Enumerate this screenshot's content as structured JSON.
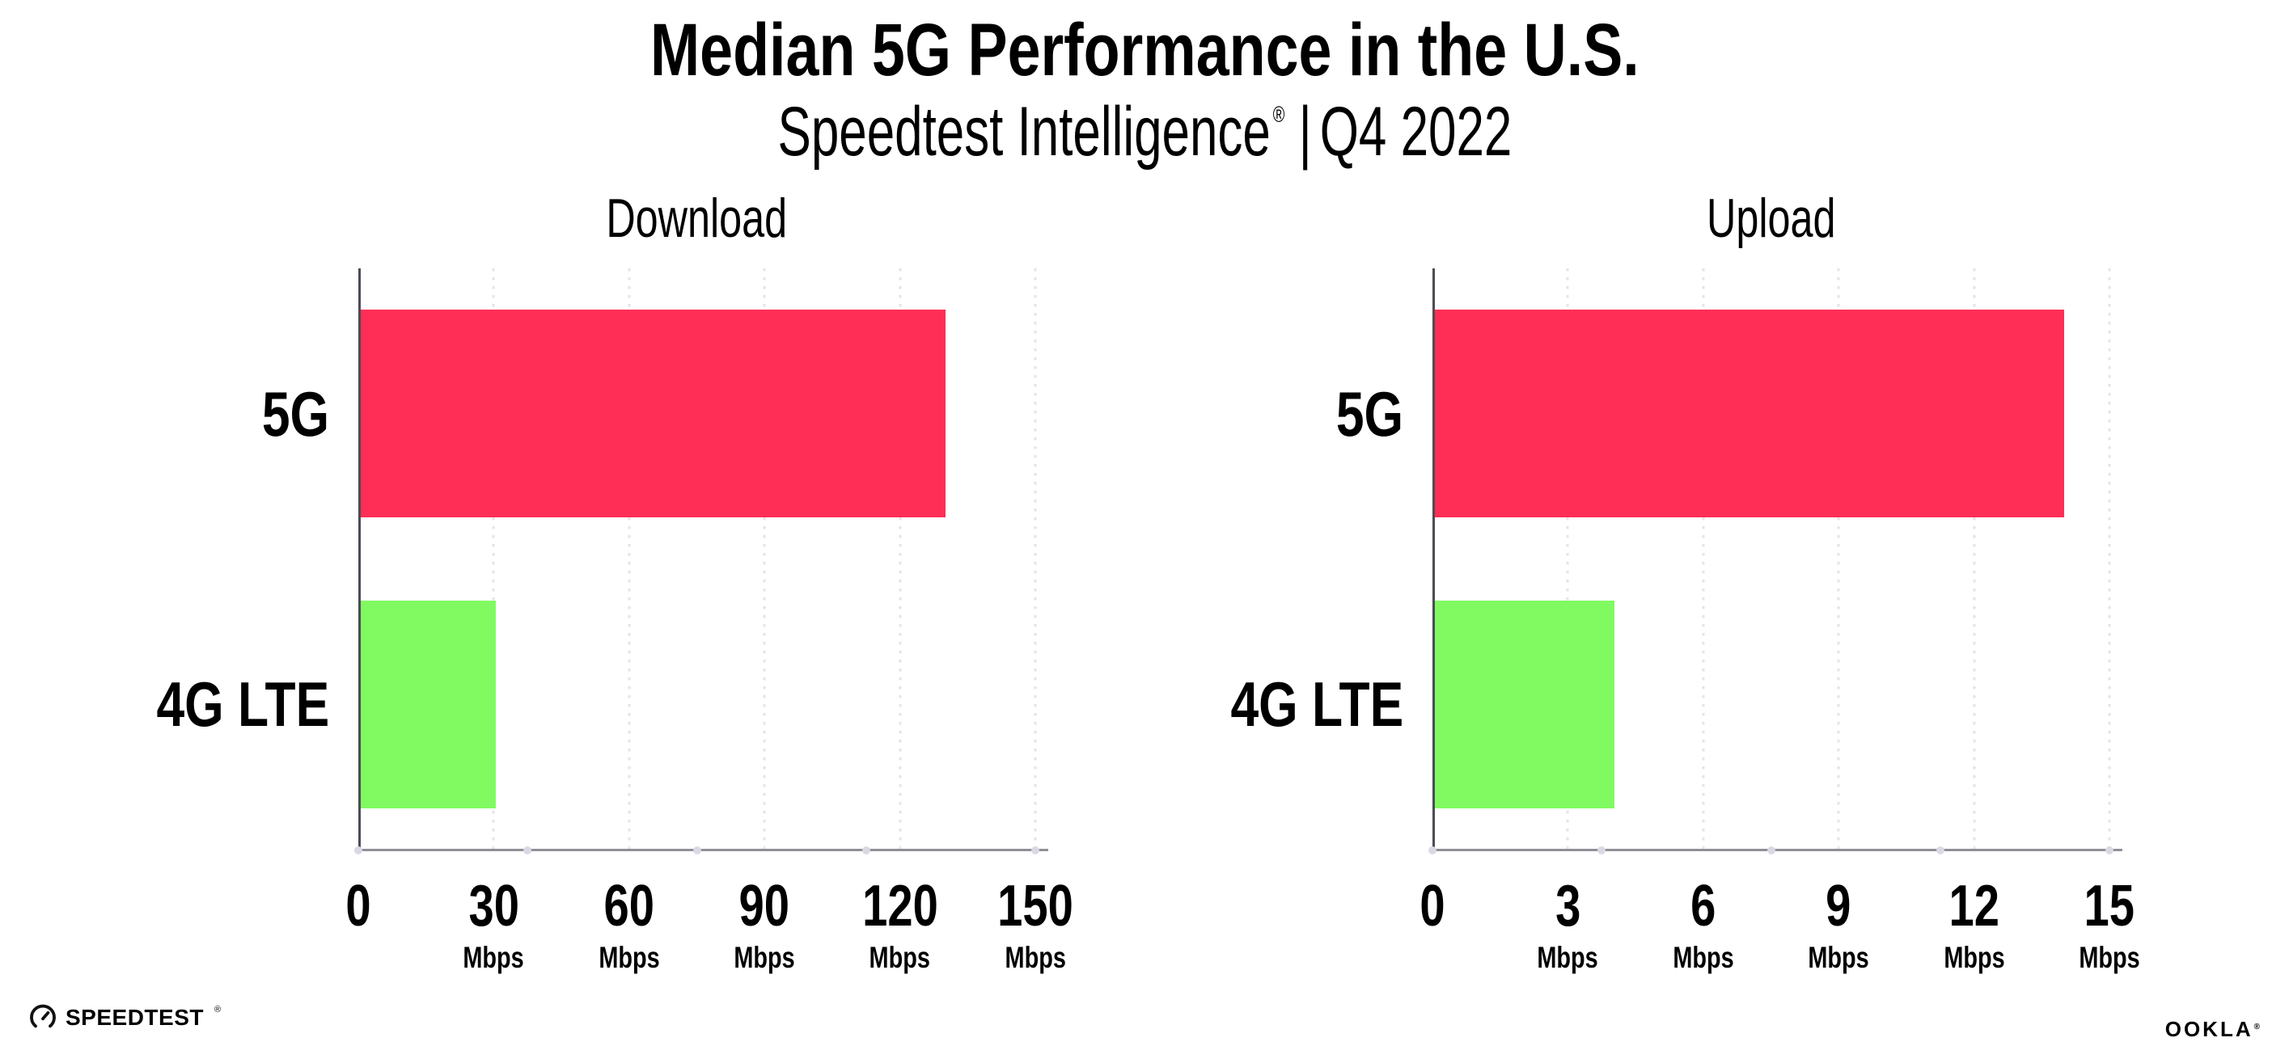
{
  "header": {
    "title": "Median 5G Performance in the U.S.",
    "subtitle_brand": "Speedtest Intelligence",
    "subtitle_reg_mark": "®",
    "subtitle_separator": "|",
    "subtitle_period": "Q4 2022"
  },
  "chart_data": [
    {
      "type": "bar",
      "orientation": "horizontal",
      "title": "Download",
      "categories": [
        "5G",
        "4G LTE"
      ],
      "values": [
        130,
        30
      ],
      "unit": "Mbps",
      "xlim": [
        0,
        150
      ],
      "xticks": [
        0,
        30,
        60,
        90,
        120,
        150
      ],
      "bar_colors": [
        "#ff2e56",
        "#81fa62"
      ],
      "grid": "vertical-dotted",
      "legend": "none"
    },
    {
      "type": "bar",
      "orientation": "horizontal",
      "title": "Upload",
      "categories": [
        "5G",
        "4G LTE"
      ],
      "values": [
        14,
        4
      ],
      "unit": "Mbps",
      "xlim": [
        0,
        15
      ],
      "xticks": [
        0,
        3,
        6,
        9,
        12,
        15
      ],
      "bar_colors": [
        "#ff2e56",
        "#81fa62"
      ],
      "grid": "vertical-dotted",
      "legend": "none"
    }
  ],
  "footer": {
    "speedtest_logo_text": "SPEEDTEST",
    "speedtest_reg_mark": "®",
    "gauge_icon": "speedtest-gauge-icon",
    "ookla_logo_text": "OOKLA",
    "ookla_reg_mark": "®"
  },
  "colors": {
    "bar_5g": "#ff2e56",
    "bar_4g_lte": "#81fa62",
    "gridline": "#e3e3ee",
    "axis_y": "#4c4c54",
    "axis_x": "#8f8f97",
    "axis_dot": "#d9d9e6",
    "text": "#000000",
    "background": "#ffffff"
  }
}
